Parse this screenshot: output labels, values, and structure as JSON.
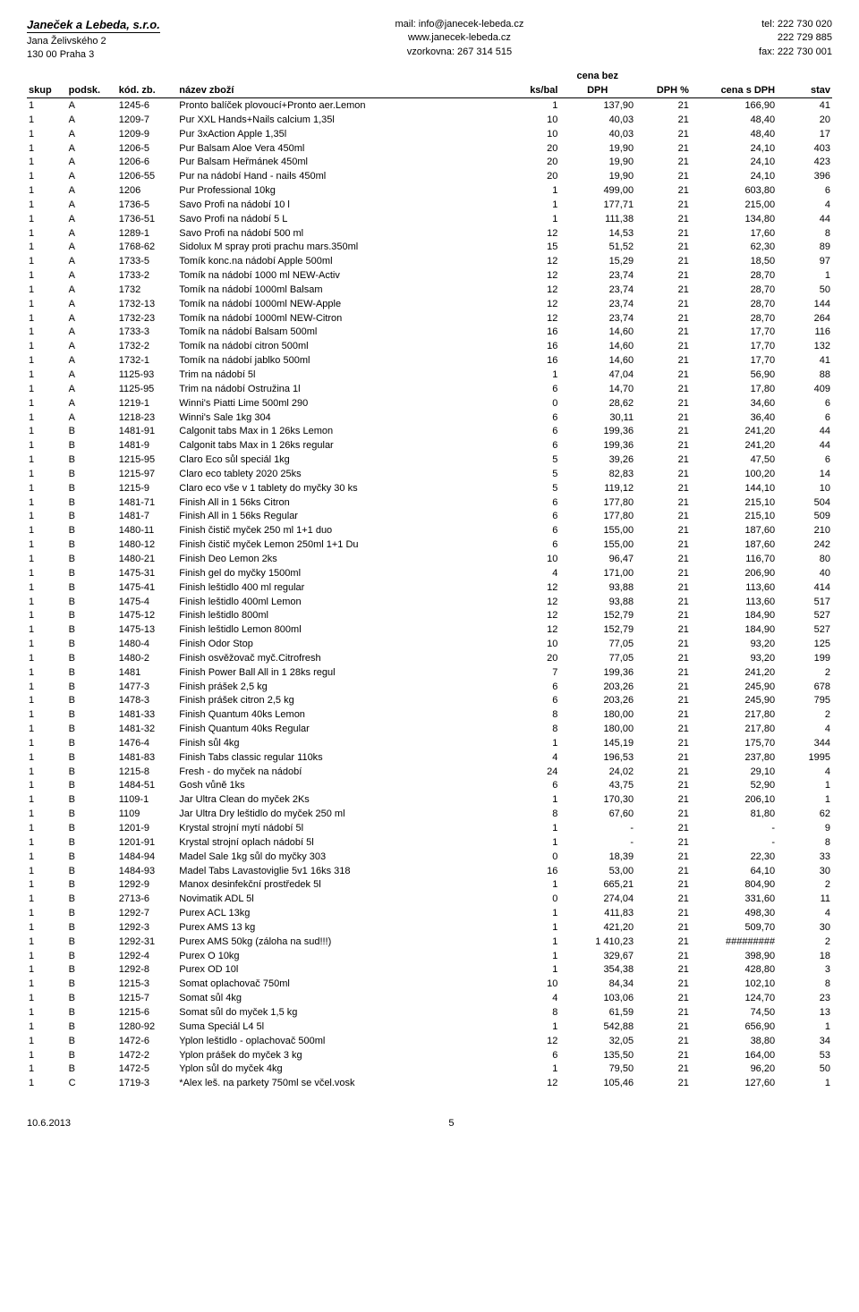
{
  "header": {
    "company": "Janeček a Lebeda, s.r.o.",
    "addr1": "Jana Želivského 2",
    "addr2": "130 00  Praha 3",
    "mail": "mail: info@janecek-lebeda.cz",
    "web": "www.janecek-lebeda.cz",
    "vzorkovna": "vzorkovna: 267 314 515",
    "tel": "tel: 222 730 020",
    "tel2": "222 729 885",
    "fax": "fax: 222 730 001"
  },
  "columns": {
    "skup": "skup",
    "podsk": "podsk.",
    "kod": "kód. zb.",
    "nazev": "název zboží",
    "ksbal": "ks/bal",
    "cenabez": "cena bez",
    "dph": "DPH",
    "dphpct": "DPH %",
    "cenas": "cena s DPH",
    "stav": "stav"
  },
  "rows": [
    [
      "1",
      "A",
      "1245-6",
      "Pronto balíček plovoucí+Pronto aer.Lemon",
      "1",
      "137,90",
      "21",
      "166,90",
      "41"
    ],
    [
      "1",
      "A",
      "1209-7",
      "Pur  XXL Hands+Nails calcium 1,35l",
      "10",
      "40,03",
      "21",
      "48,40",
      "20"
    ],
    [
      "1",
      "A",
      "1209-9",
      "Pur 3xAction Apple 1,35l",
      "10",
      "40,03",
      "21",
      "48,40",
      "17"
    ],
    [
      "1",
      "A",
      "1206-5",
      "Pur Balsam Aloe Vera 450ml",
      "20",
      "19,90",
      "21",
      "24,10",
      "403"
    ],
    [
      "1",
      "A",
      "1206-6",
      "Pur Balsam Heřmánek 450ml",
      "20",
      "19,90",
      "21",
      "24,10",
      "423"
    ],
    [
      "1",
      "A",
      "1206-55",
      "Pur na nádobí Hand - nails 450ml",
      "20",
      "19,90",
      "21",
      "24,10",
      "396"
    ],
    [
      "1",
      "A",
      "1206",
      "Pur Professional 10kg",
      "1",
      "499,00",
      "21",
      "603,80",
      "6"
    ],
    [
      "1",
      "A",
      "1736-5",
      "Savo Profi na nádobí 10 l",
      "1",
      "177,71",
      "21",
      "215,00",
      "4"
    ],
    [
      "1",
      "A",
      "1736-51",
      "Savo Profi na nádobí 5 L",
      "1",
      "111,38",
      "21",
      "134,80",
      "44"
    ],
    [
      "1",
      "A",
      "1289-1",
      "Savo Profi na nádobí 500 ml",
      "12",
      "14,53",
      "21",
      "17,60",
      "8"
    ],
    [
      "1",
      "A",
      "1768-62",
      "Sidolux M spray proti prachu mars.350ml",
      "15",
      "51,52",
      "21",
      "62,30",
      "89"
    ],
    [
      "1",
      "A",
      "1733-5",
      "Tomík konc.na nádobí Apple 500ml",
      "12",
      "15,29",
      "21",
      "18,50",
      "97"
    ],
    [
      "1",
      "A",
      "1733-2",
      "Tomík na nádobí 1000 ml NEW-Activ",
      "12",
      "23,74",
      "21",
      "28,70",
      "1"
    ],
    [
      "1",
      "A",
      "1732",
      "Tomík na nádobí 1000ml Balsam",
      "12",
      "23,74",
      "21",
      "28,70",
      "50"
    ],
    [
      "1",
      "A",
      "1732-13",
      "Tomík na nádobí 1000ml NEW-Apple",
      "12",
      "23,74",
      "21",
      "28,70",
      "144"
    ],
    [
      "1",
      "A",
      "1732-23",
      "Tomík na nádobí 1000ml NEW-Citron",
      "12",
      "23,74",
      "21",
      "28,70",
      "264"
    ],
    [
      "1",
      "A",
      "1733-3",
      "Tomík na nádobí Balsam 500ml",
      "16",
      "14,60",
      "21",
      "17,70",
      "116"
    ],
    [
      "1",
      "A",
      "1732-2",
      "Tomík na nádobí citron 500ml",
      "16",
      "14,60",
      "21",
      "17,70",
      "132"
    ],
    [
      "1",
      "A",
      "1732-1",
      "Tomík na nádobí jablko 500ml",
      "16",
      "14,60",
      "21",
      "17,70",
      "41"
    ],
    [
      "1",
      "A",
      "1125-93",
      "Trim na nádobí 5l",
      "1",
      "47,04",
      "21",
      "56,90",
      "88"
    ],
    [
      "1",
      "A",
      "1125-95",
      "Trim na nádobí Ostružina 1l",
      "6",
      "14,70",
      "21",
      "17,80",
      "409"
    ],
    [
      "1",
      "A",
      "1219-1",
      "Winni's Piatti Lime 500ml  290",
      "0",
      "28,62",
      "21",
      "34,60",
      "6"
    ],
    [
      "1",
      "A",
      "1218-23",
      "Winni's Sale 1kg  304",
      "6",
      "30,11",
      "21",
      "36,40",
      "6"
    ],
    [
      "1",
      "B",
      "1481-91",
      "Calgonit tabs Max in 1 26ks Lemon",
      "6",
      "199,36",
      "21",
      "241,20",
      "44"
    ],
    [
      "1",
      "B",
      "1481-9",
      "Calgonit tabs Max in 1 26ks regular",
      "6",
      "199,36",
      "21",
      "241,20",
      "44"
    ],
    [
      "1",
      "B",
      "1215-95",
      "Claro Eco sůl speciál 1kg",
      "5",
      "39,26",
      "21",
      "47,50",
      "6"
    ],
    [
      "1",
      "B",
      "1215-97",
      "Claro eco tablety 2020 25ks",
      "5",
      "82,83",
      "21",
      "100,20",
      "14"
    ],
    [
      "1",
      "B",
      "1215-9",
      "Claro eco vše v 1 tablety do myčky 30 ks",
      "5",
      "119,12",
      "21",
      "144,10",
      "10"
    ],
    [
      "1",
      "B",
      "1481-71",
      "Finish All in 1 56ks Citron",
      "6",
      "177,80",
      "21",
      "215,10",
      "504"
    ],
    [
      "1",
      "B",
      "1481-7",
      "Finish All in 1 56ks Regular",
      "6",
      "177,80",
      "21",
      "215,10",
      "509"
    ],
    [
      "1",
      "B",
      "1480-11",
      "Finish čistič myček 250 ml 1+1 duo",
      "6",
      "155,00",
      "21",
      "187,60",
      "210"
    ],
    [
      "1",
      "B",
      "1480-12",
      "Finish čistič myček Lemon 250ml 1+1 Du",
      "6",
      "155,00",
      "21",
      "187,60",
      "242"
    ],
    [
      "1",
      "B",
      "1480-21",
      "Finish Deo Lemon 2ks",
      "10",
      "96,47",
      "21",
      "116,70",
      "80"
    ],
    [
      "1",
      "B",
      "1475-31",
      "Finish gel do myčky 1500ml",
      "4",
      "171,00",
      "21",
      "206,90",
      "40"
    ],
    [
      "1",
      "B",
      "1475-41",
      "Finish leštidlo 400 ml regular",
      "12",
      "93,88",
      "21",
      "113,60",
      "414"
    ],
    [
      "1",
      "B",
      "1475-4",
      "Finish leštidlo 400ml Lemon",
      "12",
      "93,88",
      "21",
      "113,60",
      "517"
    ],
    [
      "1",
      "B",
      "1475-12",
      "Finish leštidlo 800ml",
      "12",
      "152,79",
      "21",
      "184,90",
      "527"
    ],
    [
      "1",
      "B",
      "1475-13",
      "Finish leštidlo Lemon 800ml",
      "12",
      "152,79",
      "21",
      "184,90",
      "527"
    ],
    [
      "1",
      "B",
      "1480-4",
      "Finish Odor Stop",
      "10",
      "77,05",
      "21",
      "93,20",
      "125"
    ],
    [
      "1",
      "B",
      "1480-2",
      "Finish osvěžovač myč.Citrofresh",
      "20",
      "77,05",
      "21",
      "93,20",
      "199"
    ],
    [
      "1",
      "B",
      "1481",
      "Finish Power Ball  All in 1 28ks regul",
      "7",
      "199,36",
      "21",
      "241,20",
      "2"
    ],
    [
      "1",
      "B",
      "1477-3",
      "Finish prášek 2,5 kg",
      "6",
      "203,26",
      "21",
      "245,90",
      "678"
    ],
    [
      "1",
      "B",
      "1478-3",
      "Finish prášek citron 2,5 kg",
      "6",
      "203,26",
      "21",
      "245,90",
      "795"
    ],
    [
      "1",
      "B",
      "1481-33",
      "Finish Quantum 40ks Lemon",
      "8",
      "180,00",
      "21",
      "217,80",
      "2"
    ],
    [
      "1",
      "B",
      "1481-32",
      "Finish Quantum 40ks Regular",
      "8",
      "180,00",
      "21",
      "217,80",
      "4"
    ],
    [
      "1",
      "B",
      "1476-4",
      "Finish sůl 4kg",
      "1",
      "145,19",
      "21",
      "175,70",
      "344"
    ],
    [
      "1",
      "B",
      "1481-83",
      "Finish Tabs classic regular 110ks",
      "4",
      "196,53",
      "21",
      "237,80",
      "1995"
    ],
    [
      "1",
      "B",
      "1215-8",
      "Fresh - do myček na nádobí",
      "24",
      "24,02",
      "21",
      "29,10",
      "4"
    ],
    [
      "1",
      "B",
      "1484-51",
      "Gosh vůně 1ks",
      "6",
      "43,75",
      "21",
      "52,90",
      "1"
    ],
    [
      "1",
      "B",
      "1109-1",
      "Jar Ultra Clean do myček 2Ks",
      "1",
      "170,30",
      "21",
      "206,10",
      "1"
    ],
    [
      "1",
      "B",
      "1109",
      "Jar Ultra Dry leštidlo do myček 250 ml",
      "8",
      "67,60",
      "21",
      "81,80",
      "62"
    ],
    [
      "1",
      "B",
      "1201-9",
      "Krystal strojní mytí nádobí 5l",
      "1",
      "-",
      "21",
      "-",
      "9"
    ],
    [
      "1",
      "B",
      "1201-91",
      "Krystal strojní oplach nádobí 5l",
      "1",
      "-",
      "21",
      "-",
      "8"
    ],
    [
      "1",
      "B",
      "1484-94",
      "Madel Sale 1kg sůl do myčky   303",
      "0",
      "18,39",
      "21",
      "22,30",
      "33"
    ],
    [
      "1",
      "B",
      "1484-93",
      "Madel Tabs Lavastoviglie 5v1 16ks  318",
      "16",
      "53,00",
      "21",
      "64,10",
      "30"
    ],
    [
      "1",
      "B",
      "1292-9",
      "Manox desinfekční prostředek 5l",
      "1",
      "665,21",
      "21",
      "804,90",
      "2"
    ],
    [
      "1",
      "B",
      "2713-6",
      "Novimatik ADL 5l",
      "0",
      "274,04",
      "21",
      "331,60",
      "11"
    ],
    [
      "1",
      "B",
      "1292-7",
      "Purex ACL 13kg",
      "1",
      "411,83",
      "21",
      "498,30",
      "4"
    ],
    [
      "1",
      "B",
      "1292-3",
      "Purex AMS 13 kg",
      "1",
      "421,20",
      "21",
      "509,70",
      "30"
    ],
    [
      "1",
      "B",
      "1292-31",
      "Purex AMS 50kg (záloha na sud!!!)",
      "1",
      "1 410,23",
      "21",
      "#########",
      "2"
    ],
    [
      "1",
      "B",
      "1292-4",
      "Purex O 10kg",
      "1",
      "329,67",
      "21",
      "398,90",
      "18"
    ],
    [
      "1",
      "B",
      "1292-8",
      "Purex OD 10l",
      "1",
      "354,38",
      "21",
      "428,80",
      "3"
    ],
    [
      "1",
      "B",
      "1215-3",
      "Somat oplachovač 750ml",
      "10",
      "84,34",
      "21",
      "102,10",
      "8"
    ],
    [
      "1",
      "B",
      "1215-7",
      "Somat sůl 4kg",
      "4",
      "103,06",
      "21",
      "124,70",
      "23"
    ],
    [
      "1",
      "B",
      "1215-6",
      "Somat sůl do myček 1,5 kg",
      "8",
      "61,59",
      "21",
      "74,50",
      "13"
    ],
    [
      "1",
      "B",
      "1280-92",
      "Suma Speciál L4 5l",
      "1",
      "542,88",
      "21",
      "656,90",
      "1"
    ],
    [
      "1",
      "B",
      "1472-6",
      "Yplon leštidlo - oplachovač 500ml",
      "12",
      "32,05",
      "21",
      "38,80",
      "34"
    ],
    [
      "1",
      "B",
      "1472-2",
      "Yplon prášek do myček 3 kg",
      "6",
      "135,50",
      "21",
      "164,00",
      "53"
    ],
    [
      "1",
      "B",
      "1472-5",
      "Yplon sůl do myček 4kg",
      "1",
      "79,50",
      "21",
      "96,20",
      "50"
    ],
    [
      "1",
      "C",
      "1719-3",
      "*Alex leš. na parkety 750ml se včel.vosk",
      "12",
      "105,46",
      "21",
      "127,60",
      "1"
    ]
  ],
  "footer": {
    "date": "10.6.2013",
    "page": "5"
  },
  "style": {
    "font_family": "Arial, sans-serif",
    "font_size_body": 11,
    "font_size_company": 13,
    "text_color": "#000000",
    "background_color": "#ffffff",
    "border_color": "#000000",
    "col_widths": {
      "skup": 35,
      "podsk": 45,
      "kod": 55,
      "nazev": 320,
      "ksbal": 45,
      "dph": 70,
      "dphpct": 50,
      "cenas": 80,
      "stav": 50
    }
  }
}
